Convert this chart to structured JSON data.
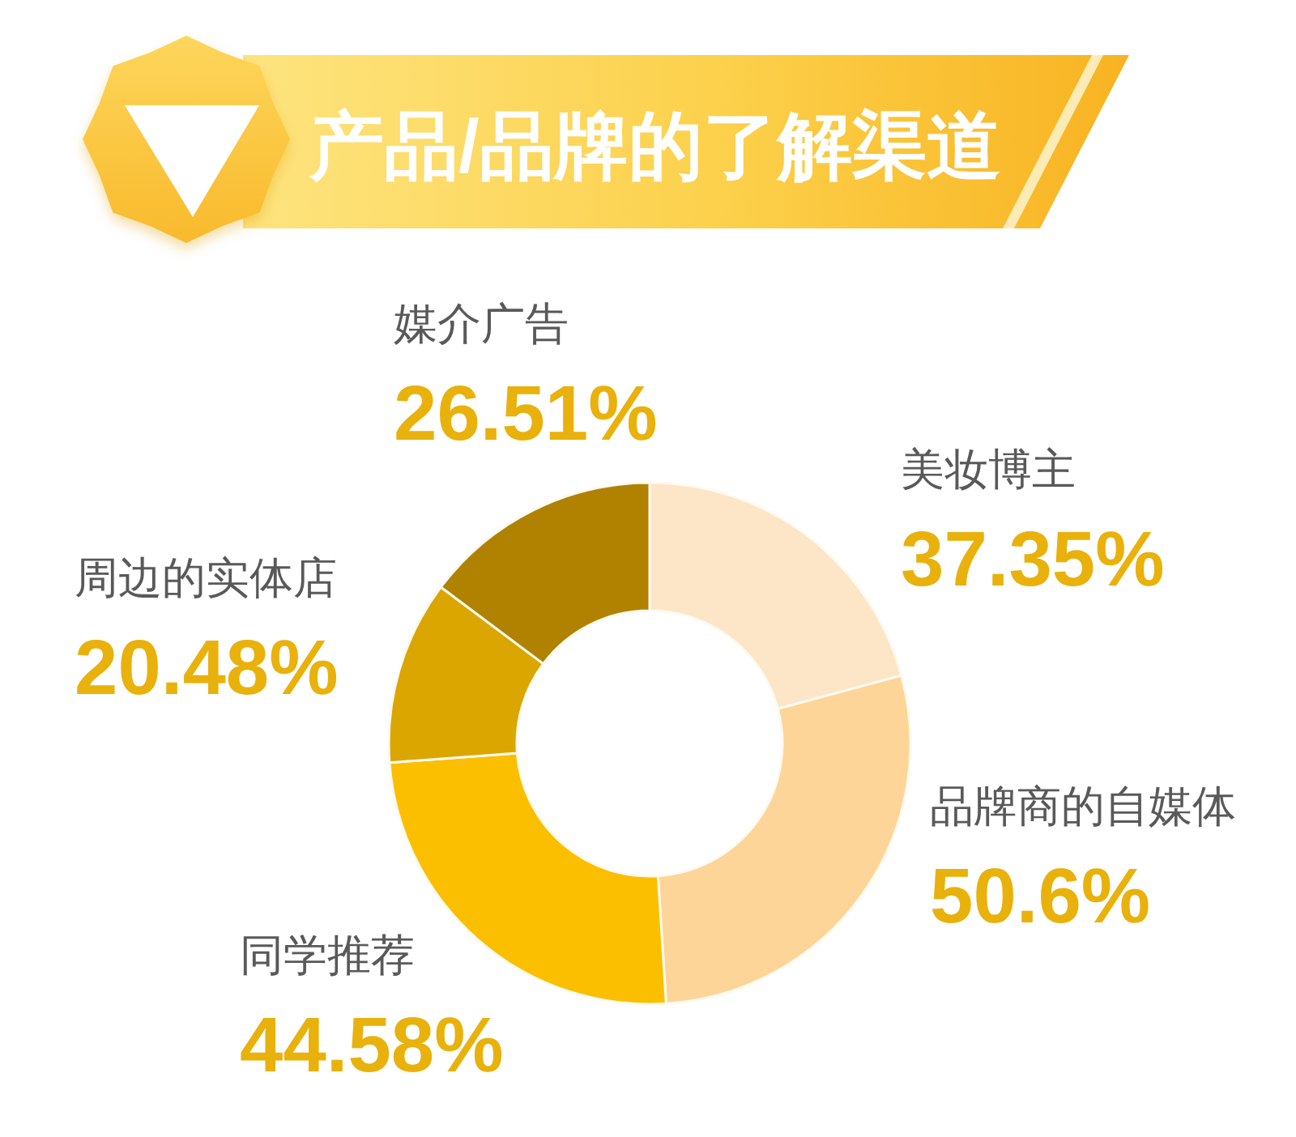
{
  "chart_data": {
    "type": "donut",
    "title": "产品/品牌的了解渠道",
    "categories": [
      "美妆博主",
      "品牌商的自媒体",
      "同学推荐",
      "周边的实体店",
      "媒介广告"
    ],
    "values": [
      37.35,
      50.6,
      44.58,
      20.48,
      26.51
    ],
    "value_labels": [
      "37.35%",
      "50.6%",
      "44.58%",
      "20.48%",
      "26.51%"
    ],
    "colors": [
      "#fde5c8",
      "#fdd598",
      "#fbbf00",
      "#dba600",
      "#b08200"
    ]
  }
}
